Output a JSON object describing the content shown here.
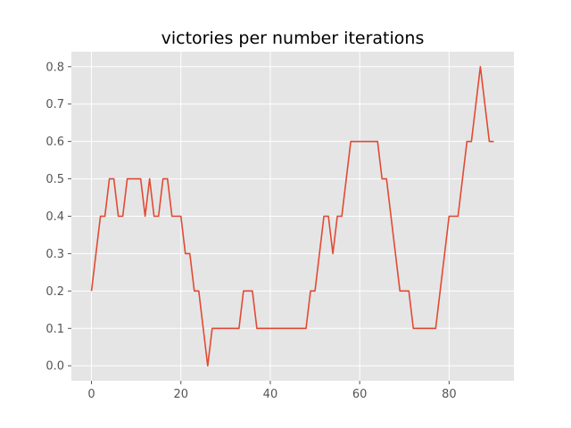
{
  "chart_data": {
    "type": "line",
    "title": "victories per number iterations",
    "xlabel": "",
    "ylabel": "",
    "xlim": [
      -4.5,
      94.5
    ],
    "ylim": [
      -0.04,
      0.84
    ],
    "xticks": [
      0,
      20,
      40,
      60,
      80
    ],
    "yticks": [
      0.0,
      0.1,
      0.2,
      0.3,
      0.4,
      0.5,
      0.6,
      0.7,
      0.8
    ],
    "xtick_labels": [
      "0",
      "20",
      "40",
      "60",
      "80"
    ],
    "ytick_labels": [
      "0.0",
      "0.1",
      "0.2",
      "0.3",
      "0.4",
      "0.5",
      "0.6",
      "0.7",
      "0.8"
    ],
    "grid": true,
    "style": "ggplot",
    "colors": {
      "line": "#e24a33",
      "plot_bg": "#e5e5e5",
      "grid": "#ffffff",
      "figure_bg": "#ffffff"
    },
    "series": [
      {
        "x": [
          0,
          1,
          2,
          3,
          4,
          5,
          6,
          7,
          8,
          9,
          10,
          11,
          12,
          13,
          14,
          15,
          16,
          17,
          18,
          19,
          20,
          21,
          22,
          23,
          24,
          25,
          26,
          27,
          28,
          29,
          30,
          31,
          32,
          33,
          34,
          35,
          36,
          37,
          38,
          39,
          40,
          41,
          42,
          43,
          44,
          45,
          46,
          47,
          48,
          49,
          50,
          51,
          52,
          53,
          54,
          55,
          56,
          57,
          58,
          59,
          60,
          61,
          62,
          63,
          64,
          65,
          66,
          67,
          68,
          69,
          70,
          71,
          72,
          73,
          74,
          75,
          76,
          77,
          78,
          79,
          80,
          81,
          82,
          83,
          84,
          85,
          86,
          87,
          88,
          89,
          90
        ],
        "values": [
          0.2,
          0.3,
          0.4,
          0.4,
          0.5,
          0.5,
          0.4,
          0.4,
          0.5,
          0.5,
          0.5,
          0.5,
          0.4,
          0.5,
          0.4,
          0.4,
          0.5,
          0.5,
          0.4,
          0.4,
          0.4,
          0.3,
          0.3,
          0.2,
          0.2,
          0.1,
          0.0,
          0.1,
          0.1,
          0.1,
          0.1,
          0.1,
          0.1,
          0.1,
          0.2,
          0.2,
          0.2,
          0.1,
          0.1,
          0.1,
          0.1,
          0.1,
          0.1,
          0.1,
          0.1,
          0.1,
          0.1,
          0.1,
          0.1,
          0.2,
          0.2,
          0.3,
          0.4,
          0.4,
          0.3,
          0.4,
          0.4,
          0.5,
          0.6,
          0.6,
          0.6,
          0.6,
          0.6,
          0.6,
          0.6,
          0.5,
          0.5,
          0.4,
          0.3,
          0.2,
          0.2,
          0.2,
          0.1,
          0.1,
          0.1,
          0.1,
          0.1,
          0.1,
          0.2,
          0.3,
          0.4,
          0.4,
          0.4,
          0.5,
          0.6,
          0.6,
          0.7,
          0.8,
          0.7,
          0.6,
          0.6
        ]
      }
    ]
  }
}
